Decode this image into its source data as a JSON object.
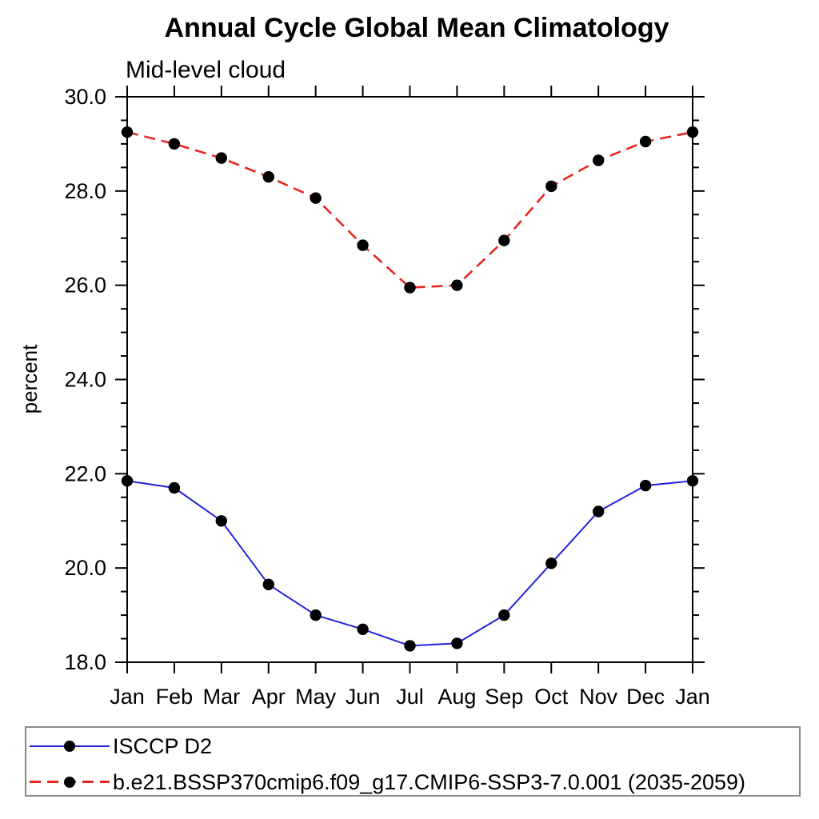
{
  "title": "Annual Cycle Global Mean Climatology",
  "subtitle": "Mid-level cloud",
  "colors": {
    "observation_line": "#2222dd",
    "model_line": "#e62620",
    "marker": "#000000",
    "axis": "#000000",
    "legend_border": "#8a8a8a",
    "background": "#ffffff"
  },
  "chart_data": {
    "type": "line",
    "title": "Annual Cycle Global Mean Climatology",
    "subtitle": "Mid-level cloud",
    "xlabel": "",
    "ylabel": "percent",
    "x_tick_labels": [
      "Jan",
      "Feb",
      "Mar",
      "Apr",
      "May",
      "Jun",
      "Jul",
      "Aug",
      "Sep",
      "Oct",
      "Nov",
      "Dec",
      "Jan"
    ],
    "y_ticks": [
      18,
      20,
      22,
      24,
      26,
      28,
      30
    ],
    "y_tick_labels": [
      "18.0",
      "20.0",
      "22.0",
      "24.0",
      "26.0",
      "28.0",
      "30.0"
    ],
    "ylim": [
      18.0,
      30.0
    ],
    "y_minor_tick_step": 0.5,
    "grid": false,
    "legend_position": "bottom-left",
    "series": [
      {
        "name": "ISCCP D2",
        "line_style": "solid",
        "color": "#2222dd",
        "marker": "filled-circle",
        "marker_color": "#000000",
        "values": [
          21.85,
          21.7,
          21.0,
          19.65,
          19.0,
          18.7,
          18.35,
          18.4,
          19.0,
          20.1,
          21.2,
          21.75,
          21.85
        ]
      },
      {
        "name": "b.e21.BSSP370cmip6.f09_g17.CMIP6-SSP3-7.0.001 (2035-2059)",
        "line_style": "dashed",
        "color": "#e62620",
        "marker": "filled-circle",
        "marker_color": "#000000",
        "values": [
          29.25,
          29.0,
          28.7,
          28.3,
          27.85,
          26.85,
          25.95,
          26.0,
          26.95,
          28.1,
          28.65,
          29.05,
          29.25
        ]
      }
    ]
  },
  "legend": {
    "items": [
      {
        "label": "ISCCP D2"
      },
      {
        "label": "b.e21.BSSP370cmip6.f09_g17.CMIP6-SSP3-7.0.001 (2035-2059)"
      }
    ]
  }
}
